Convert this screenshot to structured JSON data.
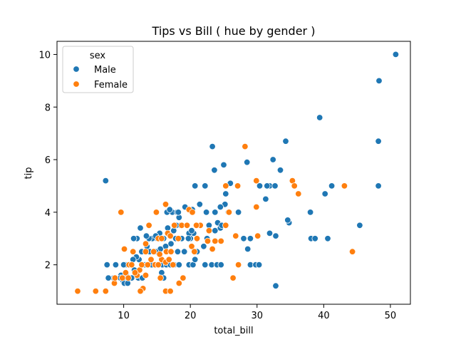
{
  "colors": {
    "Male": "#1f77b4",
    "Female": "#ff7f0e"
  },
  "chart_data": {
    "type": "scatter",
    "title": "Tips vs Bill ( hue by gender )",
    "xlabel": "total_bill",
    "ylabel": "tip",
    "xlim": [
      0.0,
      53.0
    ],
    "ylim": [
      0.5,
      10.5
    ],
    "xticks": [
      10,
      20,
      30,
      40,
      50
    ],
    "yticks": [
      2,
      4,
      6,
      8,
      10
    ],
    "grid": false,
    "legend": {
      "title": "sex",
      "position": "top-left",
      "entries": [
        "Male",
        "Female"
      ]
    },
    "series": [
      {
        "name": "Male",
        "points": [
          [
            50.8,
            10.0
          ],
          [
            48.3,
            9.0
          ],
          [
            48.2,
            6.7
          ],
          [
            48.2,
            5.0
          ],
          [
            39.4,
            7.6
          ],
          [
            34.3,
            6.7
          ],
          [
            32.4,
            6.0
          ],
          [
            31.9,
            5.0
          ],
          [
            31.5,
            5.0
          ],
          [
            32.7,
            5.0
          ],
          [
            30.4,
            5.0
          ],
          [
            33.5,
            5.6
          ],
          [
            28.5,
            5.9
          ],
          [
            25.0,
            5.8
          ],
          [
            23.3,
            6.5
          ],
          [
            23.6,
            5.6
          ],
          [
            26.0,
            5.1
          ],
          [
            20.7,
            5.0
          ],
          [
            22.2,
            5.0
          ],
          [
            41.2,
            5.0
          ],
          [
            40.2,
            4.7
          ],
          [
            25.3,
            4.7
          ],
          [
            31.3,
            4.5
          ],
          [
            25.2,
            4.3
          ],
          [
            24.5,
            4.2
          ],
          [
            22.4,
            4.0
          ],
          [
            21.4,
            4.3
          ],
          [
            19.2,
            4.2
          ],
          [
            17.3,
            4.0
          ],
          [
            16.5,
            4.0
          ],
          [
            16.9,
            4.1
          ],
          [
            18.0,
            4.0
          ],
          [
            18.3,
            3.8
          ],
          [
            20.3,
            4.1
          ],
          [
            23.7,
            4.0
          ],
          [
            25.7,
            4.0
          ],
          [
            27.2,
            4.0
          ],
          [
            38.0,
            4.0
          ],
          [
            34.8,
            3.6
          ],
          [
            34.6,
            3.7
          ],
          [
            45.4,
            3.5
          ],
          [
            38.1,
            3.0
          ],
          [
            38.7,
            3.0
          ],
          [
            40.6,
            3.0
          ],
          [
            29.0,
            3.0
          ],
          [
            28.0,
            3.0
          ],
          [
            31.9,
            3.2
          ],
          [
            32.8,
            3.1
          ],
          [
            24.5,
            3.4
          ],
          [
            23.7,
            3.3
          ],
          [
            24.1,
            3.6
          ],
          [
            24.7,
            3.5
          ],
          [
            22.8,
            3.5
          ],
          [
            21.5,
            3.5
          ],
          [
            20.5,
            3.2
          ],
          [
            20.0,
            3.0
          ],
          [
            19.8,
            3.2
          ],
          [
            18.5,
            3.5
          ],
          [
            17.9,
            3.5
          ],
          [
            17.5,
            3.3
          ],
          [
            16.6,
            3.4
          ],
          [
            16.0,
            3.0
          ],
          [
            15.4,
            3.2
          ],
          [
            15.0,
            3.0
          ],
          [
            14.3,
            3.0
          ],
          [
            13.8,
            3.0
          ],
          [
            12.5,
            3.4
          ],
          [
            13.4,
            3.1
          ],
          [
            12.0,
            3.0
          ],
          [
            11.5,
            3.0
          ],
          [
            14.8,
            3.1
          ],
          [
            18.1,
            2.5
          ],
          [
            17.1,
            2.8
          ],
          [
            16.3,
            2.7
          ],
          [
            15.5,
            2.6
          ],
          [
            14.8,
            2.5
          ],
          [
            13.9,
            2.5
          ],
          [
            13.5,
            2.7
          ],
          [
            12.7,
            2.5
          ],
          [
            12.3,
            2.2
          ],
          [
            11.9,
            2.3
          ],
          [
            11.4,
            2.2
          ],
          [
            10.9,
            2.0
          ],
          [
            10.3,
            2.0
          ],
          [
            10.0,
            2.0
          ],
          [
            9.6,
            1.6
          ],
          [
            9.5,
            1.5
          ],
          [
            9.9,
            1.4
          ],
          [
            10.1,
            1.3
          ],
          [
            10.6,
            1.3
          ],
          [
            10.4,
            1.6
          ],
          [
            11.2,
            1.5
          ],
          [
            11.6,
            1.8
          ],
          [
            12.2,
            1.5
          ],
          [
            12.8,
            1.5
          ],
          [
            13.2,
            2.0
          ],
          [
            13.6,
            2.0
          ],
          [
            14.2,
            2.0
          ],
          [
            15.0,
            2.0
          ],
          [
            15.8,
            2.0
          ],
          [
            16.4,
            2.0
          ],
          [
            17.0,
            2.0
          ],
          [
            17.6,
            2.0
          ],
          [
            18.3,
            2.0
          ],
          [
            18.9,
            1.5
          ],
          [
            19.8,
            2.0
          ],
          [
            20.4,
            2.0
          ],
          [
            20.7,
            2.2
          ],
          [
            21.0,
            2.5
          ],
          [
            22.2,
            2.0
          ],
          [
            23.2,
            2.0
          ],
          [
            24.0,
            2.0
          ],
          [
            24.6,
            2.0
          ],
          [
            29.0,
            2.0
          ],
          [
            29.8,
            2.0
          ],
          [
            30.3,
            2.0
          ],
          [
            32.8,
            1.2
          ],
          [
            28.6,
            2.6
          ],
          [
            12.6,
            1.0
          ],
          [
            8.8,
            2.0
          ],
          [
            8.5,
            1.5
          ],
          [
            7.7,
            1.5
          ],
          [
            7.5,
            2.0
          ],
          [
            7.3,
            5.2
          ],
          [
            15.7,
            1.7
          ],
          [
            16.0,
            1.5
          ],
          [
            22.5,
            3.0
          ],
          [
            22.0,
            2.7
          ],
          [
            19.1,
            2.5
          ],
          [
            18.7,
            3.0
          ],
          [
            17.8,
            3.0
          ],
          [
            20.2,
            3.3
          ],
          [
            19.7,
            3.0
          ],
          [
            21.0,
            3.0
          ],
          [
            18.2,
            4.0
          ]
        ]
      },
      {
        "name": "Female",
        "points": [
          [
            3.1,
            1.0
          ],
          [
            5.8,
            1.0
          ],
          [
            7.3,
            1.0
          ],
          [
            16.3,
            1.0
          ],
          [
            12.9,
            1.1
          ],
          [
            12.5,
            1.0
          ],
          [
            8.6,
            1.3
          ],
          [
            8.7,
            1.5
          ],
          [
            9.8,
            1.5
          ],
          [
            10.3,
            1.7
          ],
          [
            10.8,
            2.0
          ],
          [
            11.2,
            2.0
          ],
          [
            12.0,
            1.6
          ],
          [
            12.4,
            1.8
          ],
          [
            12.7,
            2.0
          ],
          [
            13.3,
            1.6
          ],
          [
            13.6,
            2.0
          ],
          [
            14.1,
            2.2
          ],
          [
            14.7,
            2.0
          ],
          [
            15.2,
            2.0
          ],
          [
            15.7,
            2.2
          ],
          [
            16.3,
            2.1
          ],
          [
            16.8,
            2.2
          ],
          [
            17.4,
            2.0
          ],
          [
            10.1,
            2.6
          ],
          [
            11.4,
            2.5
          ],
          [
            13.3,
            2.5
          ],
          [
            14.5,
            2.5
          ],
          [
            15.4,
            2.4
          ],
          [
            16.4,
            2.5
          ],
          [
            17.1,
            2.5
          ],
          [
            20.2,
            2.7
          ],
          [
            20.6,
            2.5
          ],
          [
            21.0,
            3.0
          ],
          [
            22.6,
            2.9
          ],
          [
            23.3,
            2.6
          ],
          [
            23.7,
            2.9
          ],
          [
            9.6,
            4.0
          ],
          [
            14.9,
            4.0
          ],
          [
            16.3,
            4.3
          ],
          [
            19.8,
            4.1
          ],
          [
            20.3,
            4.0
          ],
          [
            25.8,
            4.0
          ],
          [
            21.5,
            3.5
          ],
          [
            22.8,
            3.3
          ],
          [
            18.2,
            3.0
          ],
          [
            17.6,
            3.5
          ],
          [
            16.6,
            3.2
          ],
          [
            17.0,
            3.1
          ],
          [
            15.2,
            3.0
          ],
          [
            13.8,
            3.5
          ],
          [
            13.3,
            2.8
          ],
          [
            18.7,
            3.5
          ],
          [
            19.5,
            3.5
          ],
          [
            25.3,
            3.5
          ],
          [
            26.8,
            3.1
          ],
          [
            30.1,
            3.1
          ],
          [
            24.6,
            2.9
          ],
          [
            26.4,
            1.5
          ],
          [
            27.2,
            2.0
          ],
          [
            28.2,
            6.5
          ],
          [
            27.1,
            5.0
          ],
          [
            29.9,
            5.2
          ],
          [
            35.3,
            5.2
          ],
          [
            35.6,
            5.0
          ],
          [
            36.2,
            4.7
          ],
          [
            43.1,
            5.0
          ],
          [
            44.3,
            2.5
          ],
          [
            29.9,
            4.2
          ],
          [
            25.3,
            5.0
          ],
          [
            18.3,
            1.3
          ],
          [
            18.9,
            1.5
          ],
          [
            15.5,
            1.5
          ],
          [
            17.0,
            1.0
          ],
          [
            11.7,
            1.7
          ],
          [
            10.7,
            1.5
          ],
          [
            15.7,
            3.0
          ],
          [
            20.9,
            3.5
          ]
        ]
      }
    ]
  }
}
